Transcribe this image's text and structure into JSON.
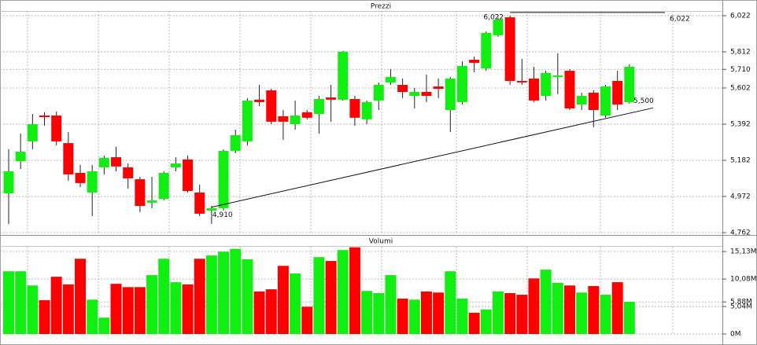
{
  "chart_data": {
    "type": "candlestick",
    "title": "Prezzi",
    "up_color": "#11ee11",
    "down_color": "#ff0000",
    "wick_color": "#222222",
    "grid": true,
    "open": [
      4.99,
      5.177,
      5.292,
      5.442,
      5.442,
      5.282,
      5.109,
      4.995,
      5.141,
      5.2,
      5.141,
      5.072,
      4.936,
      4.958,
      5.141,
      5.187,
      4.995,
      4.89,
      4.904,
      5.237,
      5.292,
      5.534,
      5.588,
      5.438,
      5.392,
      5.461,
      5.451,
      5.547,
      5.534,
      5.538,
      5.42,
      5.529,
      5.634,
      5.62,
      5.556,
      5.579,
      5.611,
      5.474,
      5.52,
      5.766,
      5.716,
      5.908,
      6.013,
      5.643,
      5.657,
      5.556,
      5.666,
      5.702,
      5.506,
      5.575,
      5.442,
      5.643,
      5.52
    ],
    "high": [
      5.246,
      5.337,
      5.451,
      5.461,
      5.465,
      5.346,
      5.155,
      5.155,
      5.209,
      5.26,
      5.164,
      5.086,
      5.086,
      5.118,
      5.2,
      5.209,
      5.041,
      4.918,
      5.246,
      5.36,
      5.543,
      5.62,
      5.597,
      5.474,
      5.529,
      5.474,
      5.556,
      5.62,
      5.817,
      5.556,
      5.529,
      5.634,
      5.712,
      5.657,
      5.602,
      5.68,
      5.657,
      5.666,
      5.757,
      5.785,
      5.931,
      6.01,
      6.022,
      5.771,
      5.725,
      5.702,
      5.803,
      5.712,
      5.575,
      5.588,
      5.62,
      5.702,
      5.739
    ],
    "low": [
      4.812,
      5.132,
      5.246,
      5.383,
      5.269,
      5.063,
      5.027,
      4.858,
      5.1,
      5.118,
      5.018,
      4.881,
      4.904,
      4.949,
      5.118,
      4.995,
      4.858,
      4.812,
      4.89,
      5.223,
      5.269,
      5.497,
      5.392,
      5.301,
      5.36,
      5.419,
      5.337,
      5.406,
      5.529,
      5.383,
      5.392,
      5.474,
      5.62,
      5.543,
      5.483,
      5.52,
      5.543,
      5.346,
      5.506,
      5.693,
      5.702,
      5.899,
      5.62,
      5.62,
      5.52,
      5.529,
      5.566,
      5.474,
      5.474,
      5.374,
      5.429,
      5.474,
      5.511
    ],
    "close": [
      5.118,
      5.232,
      5.392,
      5.433,
      5.292,
      5.1,
      5.05,
      5.118,
      5.196,
      5.146,
      5.077,
      4.917,
      4.949,
      5.109,
      5.164,
      5.004,
      4.872,
      4.904,
      5.237,
      5.328,
      5.529,
      5.52,
      5.406,
      5.406,
      5.442,
      5.429,
      5.538,
      5.534,
      5.812,
      5.429,
      5.52,
      5.62,
      5.666,
      5.579,
      5.579,
      5.556,
      5.597,
      5.657,
      5.73,
      5.748,
      5.922,
      5.999,
      5.643,
      5.634,
      5.529,
      5.689,
      5.675,
      5.483,
      5.556,
      5.474,
      5.611,
      5.506,
      5.725
    ],
    "ylim": [
      4.753,
      6.049
    ],
    "yticks": [
      {
        "value": 6.022,
        "label": "6,022"
      },
      {
        "value": 5.812,
        "label": "5,812"
      },
      {
        "value": 5.71,
        "label": "5,710"
      },
      {
        "value": 5.602,
        "label": "5,602"
      },
      {
        "value": 5.392,
        "label": "5,392"
      },
      {
        "value": 5.182,
        "label": "5,182"
      },
      {
        "value": 4.972,
        "label": "4,972"
      },
      {
        "value": 4.762,
        "label": "4,762"
      }
    ],
    "peak": {
      "value": 6.022,
      "label": "6,022"
    },
    "trendline": {
      "from": {
        "value": 4.91,
        "label": "4,910"
      },
      "to": {
        "value": 5.5,
        "label": "5,500"
      }
    },
    "volume": {
      "title": "Volumi",
      "values": [
        11.5,
        11.5,
        8.9,
        6.2,
        10.5,
        9.1,
        13.8,
        6.3,
        3.0,
        9.2,
        8.6,
        8.6,
        10.8,
        13.8,
        9.5,
        9.1,
        13.8,
        14.4,
        15.1,
        15.6,
        13.7,
        7.8,
        8.2,
        12.5,
        11.1,
        5.0,
        14.1,
        13.4,
        15.4,
        15.9,
        7.9,
        7.5,
        10.8,
        6.5,
        6.3,
        7.8,
        7.6,
        11.5,
        6.5,
        3.9,
        4.5,
        7.8,
        7.5,
        7.2,
        10.2,
        11.8,
        9.4,
        8.9,
        7.6,
        8.8,
        7.2,
        9.5,
        5.9
      ],
      "ylim": [
        0,
        16
      ],
      "yticks": [
        {
          "value": 15.13,
          "label": "15,13M"
        },
        {
          "value": 10.08,
          "label": "10,08M"
        },
        {
          "value": 5.88,
          "label": "5,88M"
        },
        {
          "value": 5.04,
          "label": "5,04M"
        },
        {
          "value": 0,
          "label": "0M"
        }
      ]
    }
  }
}
